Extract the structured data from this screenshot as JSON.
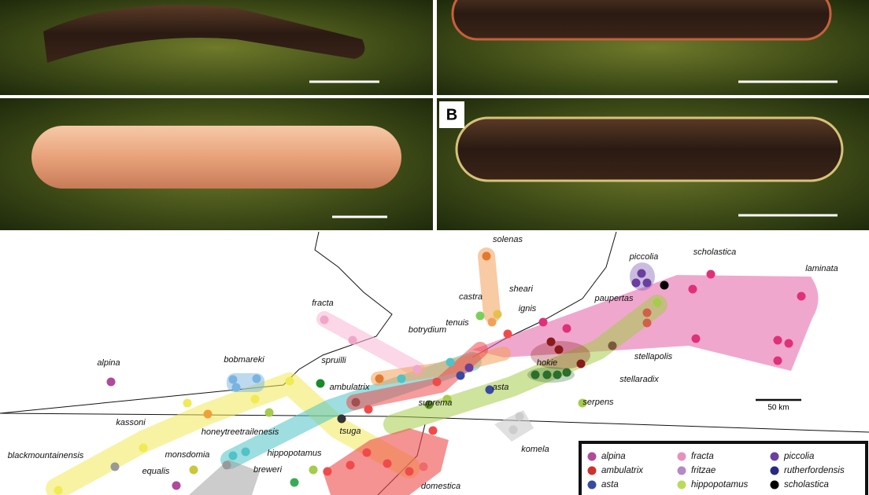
{
  "panels": {
    "label": "B"
  },
  "scale_bar": "50 km",
  "map_labels": [
    "solenas",
    "sheari",
    "castra",
    "ignis",
    "piccolia",
    "scholastica",
    "laminata",
    "paupertas",
    "fracta",
    "tenuis",
    "botrydium",
    "alpina",
    "bobmareki",
    "spruilli",
    "hokie",
    "stellapolis",
    "ambulatrix",
    "asta",
    "stellaradix",
    "suprema",
    "serpens",
    "kassoni",
    "honeytreetrailenesis",
    "tsuga",
    "komela",
    "monsdomia",
    "hippopotamus",
    "blackmountainensis",
    "equalis",
    "breweri",
    "domestica"
  ],
  "legend": [
    "alpina",
    "fracta",
    "piccolia",
    "ambulatrix",
    "fritzae",
    "rutherfordensis",
    "asta",
    "hippopotamus",
    "scholastica"
  ]
}
